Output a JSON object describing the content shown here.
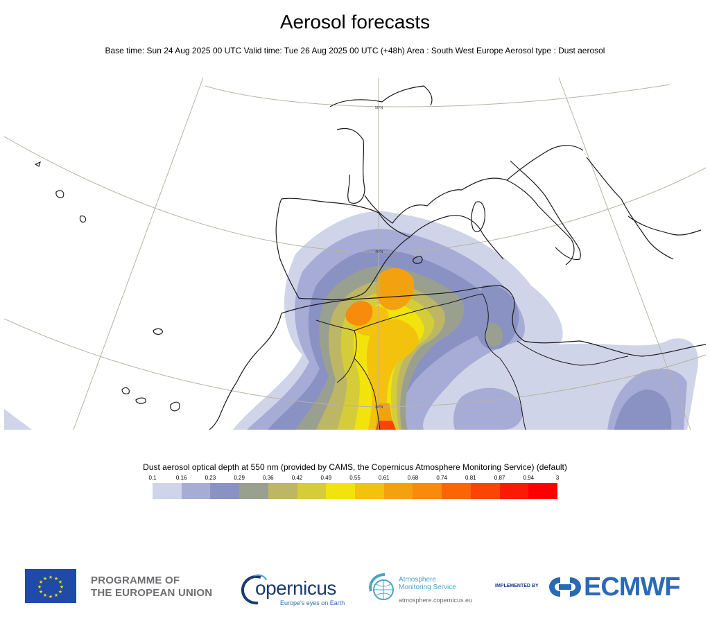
{
  "header": {
    "title": "Aerosol forecasts",
    "subtitle": "Base time: Sun 24 Aug 2025 00 UTC Valid time: Tue 26 Aug 2025 00 UTC (+48h) Area : South West Europe Aerosol type : Dust aerosol"
  },
  "map": {
    "grid_labels": [
      "50°N",
      "40°N",
      "30°N"
    ],
    "colors": {
      "coastline": "#1a1a1a",
      "graticule": "#b8b2a4",
      "background": "#ffffff"
    }
  },
  "colorbar": {
    "title": "Dust aerosol optical depth at 550 nm (provided by CAMS, the Copernicus Atmosphere Monitoring Service) (default)",
    "ticks": [
      "0.1",
      "0.16",
      "0.23",
      "0.29",
      "0.36",
      "0.42",
      "0.49",
      "0.55",
      "0.61",
      "0.68",
      "0.74",
      "0.81",
      "0.87",
      "0.94",
      "3"
    ],
    "colors": [
      "#d0d4e8",
      "#a7acd6",
      "#8a91c3",
      "#9aa08f",
      "#bdb765",
      "#d5cc3a",
      "#f2e30d",
      "#f2c20d",
      "#f4a10f",
      "#f88a0c",
      "#fb6506",
      "#fb4405",
      "#fd1a04",
      "#fe0000"
    ]
  },
  "footer": {
    "eu_line1": "PROGRAMME OF",
    "eu_line2": "THE EUROPEAN UNION",
    "copernicus_word": "opernicus",
    "copernicus_tag": "Europe's eyes on Earth",
    "cams_line1": "Atmosphere",
    "cams_line2": "Monitoring Service",
    "cams_url": "atmosphere.copernicus.eu",
    "implemented_by": "IMPLEMENTED BY",
    "ecmwf": "ECMWF"
  }
}
